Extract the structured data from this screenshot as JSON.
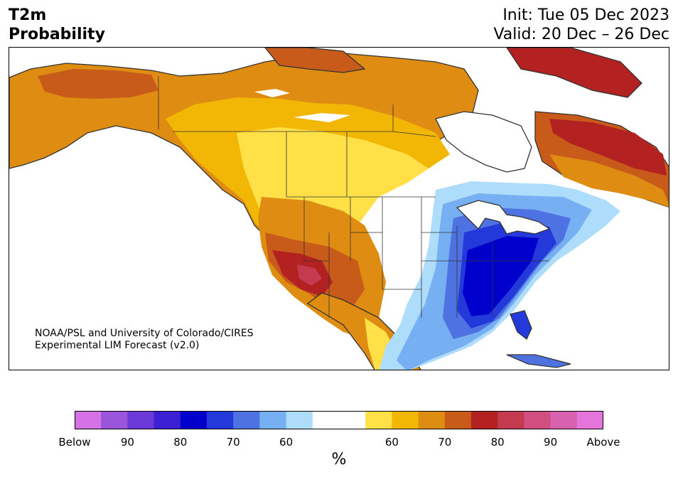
{
  "header": {
    "title_line1": "T2m",
    "title_line2": "Probability",
    "init": "Init: Tue 05 Dec 2023",
    "valid": "Valid: 20 Dec – 26 Dec"
  },
  "credit": {
    "line1": "NOAA/PSL and University of Colorado/CIRES",
    "line2": "Experimental LIM Forecast (v2.0)"
  },
  "colorbar": {
    "unit": "%",
    "colors": [
      "#d672e8",
      "#9b55dc",
      "#6b39d8",
      "#3a1fd3",
      "#0000cd",
      "#2339da",
      "#4f72e3",
      "#76b0f2",
      "#aedcfb",
      "#ffffff",
      "#ffffff",
      "#ffe047",
      "#f2b705",
      "#de8c12",
      "#c85a1a",
      "#b32121",
      "#c43a4e",
      "#d14f80",
      "#d962b0",
      "#e575da"
    ],
    "ticks": [
      "Below",
      "90",
      "80",
      "70",
      "60",
      "60",
      "70",
      "80",
      "90",
      "Above"
    ]
  },
  "colors": {
    "below_60": "#aedcfb",
    "below_65": "#76b0f2",
    "below_70": "#4f72e3",
    "below_75": "#2339da",
    "below_80": "#0000cd",
    "below_85": "#3a1fd3",
    "above_60": "#ffe047",
    "above_65": "#f2b705",
    "above_70": "#de8c12",
    "above_75": "#c85a1a",
    "above_80": "#b32121",
    "above_85": "#c43a4e",
    "coast": "#333333"
  }
}
